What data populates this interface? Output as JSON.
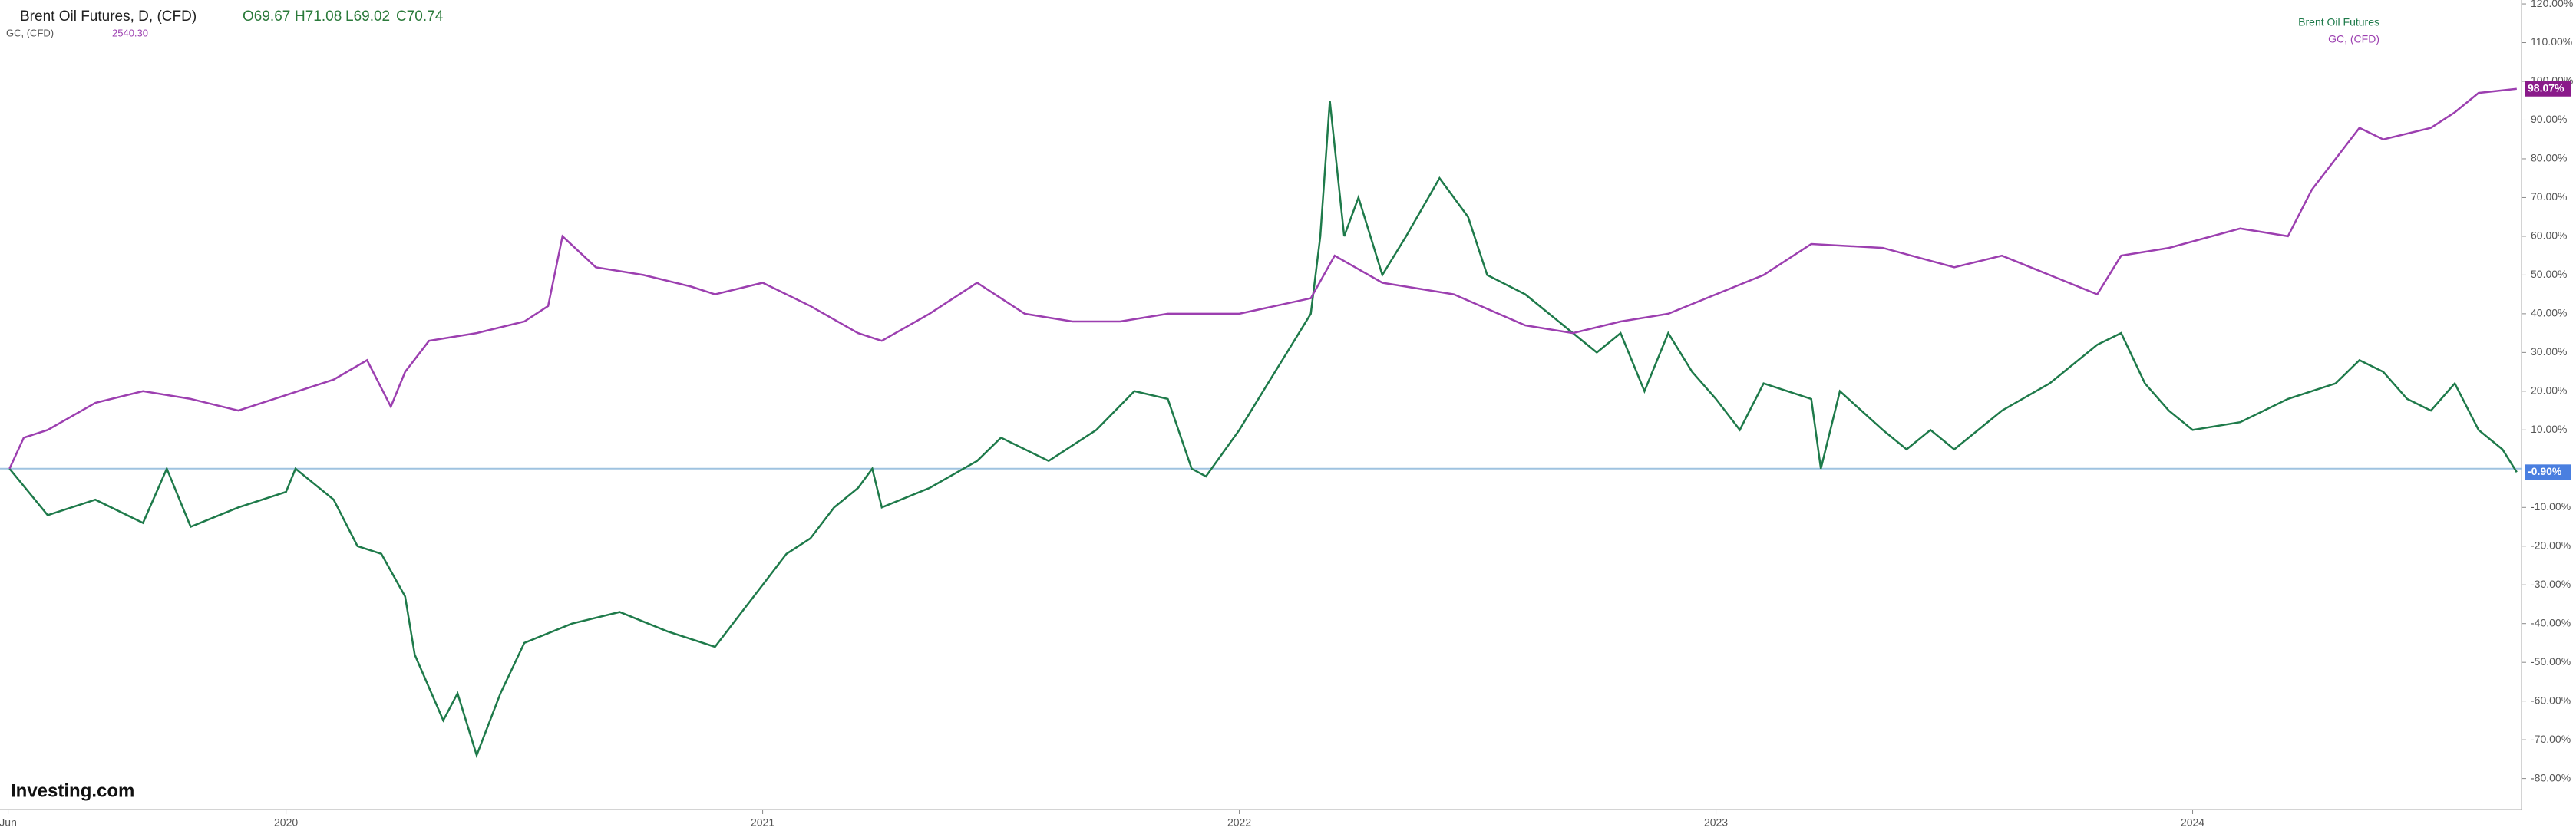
{
  "header": {
    "title": "Brent Oil Futures, D, (CFD)",
    "open": "O69.67",
    "high": "H71.08",
    "low": "L69.02",
    "close": "C70.74",
    "compare_symbol": "GC, (CFD)",
    "compare_price": "2540.30",
    "logo": "Investing.com"
  },
  "chart_data": {
    "type": "line",
    "xlim": [
      2019.4,
      2024.69
    ],
    "ylim": [
      -88,
      121
    ],
    "xticks": [
      {
        "value": 2019.417,
        "label": "Jun"
      },
      {
        "value": 2020,
        "label": "2020"
      },
      {
        "value": 2021,
        "label": "2021"
      },
      {
        "value": 2022,
        "label": "2022"
      },
      {
        "value": 2023,
        "label": "2023"
      },
      {
        "value": 2024,
        "label": "2024"
      }
    ],
    "yticks": [
      {
        "value": -80,
        "label": "-80.00%"
      },
      {
        "value": -70,
        "label": "-70.00%"
      },
      {
        "value": -60,
        "label": "-60.00%"
      },
      {
        "value": -50,
        "label": "-50.00%"
      },
      {
        "value": -40,
        "label": "-40.00%"
      },
      {
        "value": -30,
        "label": "-30.00%"
      },
      {
        "value": -20,
        "label": "-20.00%"
      },
      {
        "value": -10,
        "label": "-10.00%"
      },
      {
        "value": 10,
        "label": "10.00%"
      },
      {
        "value": 20,
        "label": "20.00%"
      },
      {
        "value": 30,
        "label": "30.00%"
      },
      {
        "value": 40,
        "label": "40.00%"
      },
      {
        "value": 50,
        "label": "50.00%"
      },
      {
        "value": 60,
        "label": "60.00%"
      },
      {
        "value": 70,
        "label": "70.00%"
      },
      {
        "value": 80,
        "label": "80.00%"
      },
      {
        "value": 90,
        "label": "90.00%"
      },
      {
        "value": 100,
        "label": "100.00%"
      },
      {
        "value": 110,
        "label": "110.00%"
      },
      {
        "value": 120,
        "label": "120.00%"
      }
    ],
    "baseline": 0,
    "series": [
      {
        "name": "Brent Oil Futures",
        "color": "#1e7a4a",
        "label_color": "#4a7fe0",
        "last_label": "-0.90%",
        "x": [
          2019.42,
          2019.5,
          2019.6,
          2019.7,
          2019.75,
          2019.8,
          2019.9,
          2020.0,
          2020.02,
          2020.1,
          2020.15,
          2020.2,
          2020.25,
          2020.27,
          2020.33,
          2020.36,
          2020.4,
          2020.45,
          2020.5,
          2020.6,
          2020.7,
          2020.8,
          2020.9,
          2020.95,
          2021.0,
          2021.05,
          2021.1,
          2021.15,
          2021.2,
          2021.23,
          2021.25,
          2021.35,
          2021.45,
          2021.5,
          2021.6,
          2021.7,
          2021.78,
          2021.85,
          2021.9,
          2021.93,
          2022.0,
          2022.05,
          2022.1,
          2022.15,
          2022.17,
          2022.19,
          2022.22,
          2022.25,
          2022.3,
          2022.35,
          2022.42,
          2022.48,
          2022.52,
          2022.6,
          2022.65,
          2022.7,
          2022.75,
          2022.8,
          2022.85,
          2022.9,
          2022.95,
          2023.0,
          2023.05,
          2023.1,
          2023.2,
          2023.22,
          2023.26,
          2023.35,
          2023.4,
          2023.45,
          2023.5,
          2023.6,
          2023.7,
          2023.8,
          2023.85,
          2023.9,
          2023.95,
          2024.0,
          2024.1,
          2024.2,
          2024.3,
          2024.35,
          2024.4,
          2024.45,
          2024.5,
          2024.55,
          2024.6,
          2024.65,
          2024.68
        ],
        "values": [
          0,
          -12,
          -8,
          -14,
          0,
          -15,
          -10,
          -6,
          0,
          -8,
          -20,
          -22,
          -33,
          -48,
          -65,
          -58,
          -74,
          -58,
          -45,
          -40,
          -37,
          -42,
          -46,
          -38,
          -30,
          -22,
          -18,
          -10,
          -5,
          0,
          -10,
          -5,
          2,
          8,
          2,
          10,
          20,
          18,
          0,
          -2,
          10,
          20,
          30,
          40,
          60,
          95,
          60,
          70,
          50,
          60,
          75,
          65,
          50,
          45,
          40,
          35,
          30,
          35,
          20,
          35,
          25,
          18,
          10,
          22,
          18,
          0,
          20,
          10,
          5,
          10,
          5,
          15,
          22,
          32,
          35,
          22,
          15,
          10,
          12,
          18,
          22,
          28,
          25,
          18,
          15,
          22,
          10,
          5,
          -0.9
        ]
      },
      {
        "name": "GC, (CFD)",
        "color": "#9c3fb0",
        "label_color": "#8a1a8a",
        "last_label": "98.07%",
        "x": [
          2019.42,
          2019.45,
          2019.5,
          2019.6,
          2019.7,
          2019.8,
          2019.9,
          2020.0,
          2020.1,
          2020.17,
          2020.22,
          2020.25,
          2020.3,
          2020.4,
          2020.5,
          2020.55,
          2020.58,
          2020.65,
          2020.75,
          2020.85,
          2020.9,
          2021.0,
          2021.1,
          2021.2,
          2021.25,
          2021.35,
          2021.45,
          2021.55,
          2021.65,
          2021.75,
          2021.85,
          2022.0,
          2022.15,
          2022.2,
          2022.3,
          2022.45,
          2022.6,
          2022.7,
          2022.8,
          2022.9,
          2023.0,
          2023.1,
          2023.2,
          2023.35,
          2023.5,
          2023.6,
          2023.7,
          2023.8,
          2023.85,
          2023.95,
          2024.1,
          2024.2,
          2024.25,
          2024.3,
          2024.35,
          2024.4,
          2024.5,
          2024.55,
          2024.6,
          2024.68
        ],
        "values": [
          0,
          8,
          10,
          17,
          20,
          18,
          15,
          19,
          23,
          28,
          16,
          25,
          33,
          35,
          38,
          42,
          60,
          52,
          50,
          47,
          45,
          48,
          42,
          35,
          33,
          40,
          48,
          40,
          38,
          38,
          40,
          40,
          44,
          55,
          48,
          45,
          37,
          35,
          38,
          40,
          45,
          50,
          58,
          57,
          52,
          55,
          50,
          45,
          55,
          57,
          62,
          60,
          72,
          80,
          88,
          85,
          88,
          92,
          97,
          98.07
        ]
      }
    ]
  }
}
